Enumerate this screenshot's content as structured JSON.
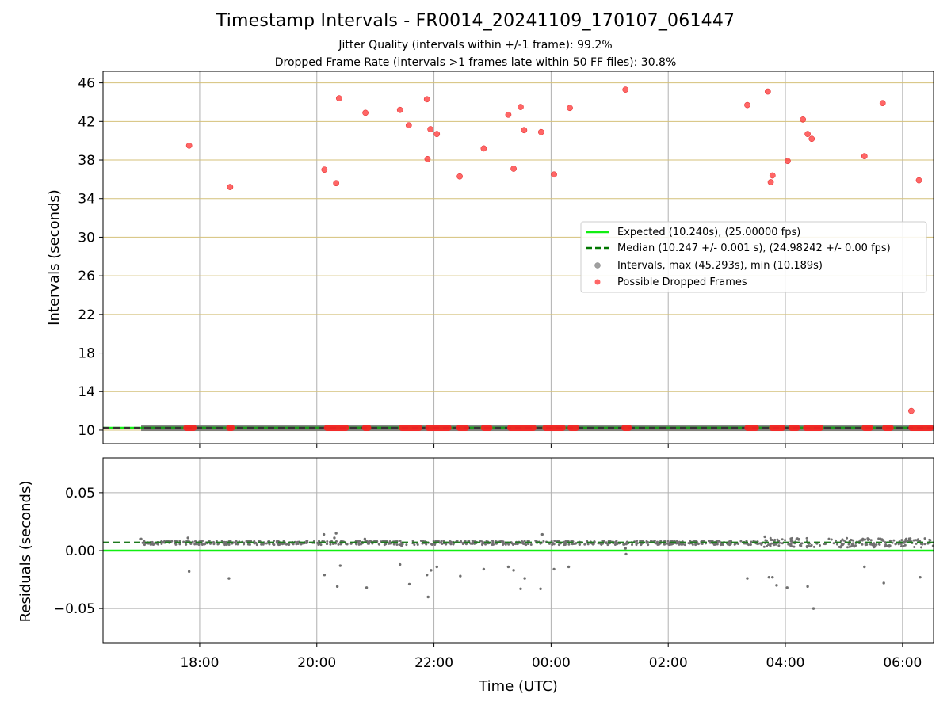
{
  "figure": {
    "title": "Timestamp Intervals - FR0014_20241109_170107_061447",
    "subtitle1": "Jitter Quality (intervals within +/-1 frame): 99.2%",
    "subtitle2": "Dropped Frame Rate (intervals >1 frames late within 50 FF files): 30.8%"
  },
  "chart_data": [
    {
      "type": "scatter",
      "panel": "top",
      "xlabel": "",
      "ylabel": "Intervals (seconds)",
      "xlim": [
        16.35,
        30.53
      ],
      "ylim": [
        8.6,
        47.2
      ],
      "x_ticks": [
        18,
        20,
        22,
        24,
        26,
        28,
        30
      ],
      "x_tick_labels": [
        "18:00",
        "20:00",
        "22:00",
        "00:00",
        "02:00",
        "04:00",
        "06:00"
      ],
      "y_ticks": [
        10,
        14,
        18,
        22,
        26,
        30,
        34,
        38,
        42,
        46
      ],
      "grid": true,
      "legend_position": "right",
      "legend": [
        {
          "label": "Expected (10.240s), (25.00000 fps)",
          "style": "solid-line",
          "color": "#11ee11"
        },
        {
          "label": "Median (10.247 +/- 0.001 s), (24.98242 +/- 0.00 fps)",
          "style": "dashed-line",
          "color": "#007700"
        },
        {
          "label": "Intervals, max (45.293s), min (10.189s)",
          "style": "marker",
          "color": "#a0a0a0"
        },
        {
          "label": "Possible Dropped Frames",
          "style": "marker",
          "color": "#ff3333"
        }
      ],
      "series": [
        {
          "name": "Expected (10.240s), (25.00000 fps)",
          "kind": "hline",
          "y": 10.24,
          "color": "#11ee11"
        },
        {
          "name": "Median (10.247 +/- 0.001 s), (24.98242 +/- 0.00 fps)",
          "kind": "hline",
          "y": 10.247,
          "color": "#007700"
        },
        {
          "name": "Intervals, max (45.293s), min (10.189s)",
          "kind": "band",
          "x_range": [
            17.0,
            30.53
          ],
          "y": 10.24,
          "color": "#707070"
        },
        {
          "name": "Possible Dropped Frames",
          "kind": "points",
          "color": "#ff3333",
          "points": [
            [
              17.82,
              39.5
            ],
            [
              18.52,
              35.2
            ],
            [
              20.13,
              37.0
            ],
            [
              20.33,
              35.6
            ],
            [
              20.38,
              44.4
            ],
            [
              20.83,
              42.9
            ],
            [
              21.42,
              43.2
            ],
            [
              21.57,
              41.6
            ],
            [
              21.88,
              44.3
            ],
            [
              21.89,
              38.1
            ],
            [
              21.94,
              41.2
            ],
            [
              22.05,
              40.7
            ],
            [
              22.44,
              36.3
            ],
            [
              22.85,
              39.2
            ],
            [
              23.27,
              42.7
            ],
            [
              23.36,
              37.1
            ],
            [
              23.48,
              43.5
            ],
            [
              23.54,
              41.1
            ],
            [
              23.83,
              40.9
            ],
            [
              24.05,
              36.5
            ],
            [
              24.32,
              43.4
            ],
            [
              25.27,
              45.3
            ],
            [
              27.35,
              43.7
            ],
            [
              27.7,
              45.1
            ],
            [
              27.75,
              35.7
            ],
            [
              27.78,
              36.4
            ],
            [
              28.04,
              37.9
            ],
            [
              28.3,
              42.2
            ],
            [
              28.38,
              40.7
            ],
            [
              28.45,
              40.2
            ],
            [
              29.35,
              38.4
            ],
            [
              29.66,
              43.9
            ],
            [
              30.15,
              12.0
            ],
            [
              30.28,
              35.9
            ]
          ],
          "baseline_clusters": [
            [
              17.72,
              17.95
            ],
            [
              18.45,
              18.6
            ],
            [
              20.12,
              20.55
            ],
            [
              20.77,
              20.93
            ],
            [
              21.4,
              21.8
            ],
            [
              21.85,
              22.3
            ],
            [
              22.38,
              22.6
            ],
            [
              22.8,
              23.0
            ],
            [
              23.25,
              23.75
            ],
            [
              23.85,
              24.25
            ],
            [
              24.28,
              24.48
            ],
            [
              25.2,
              25.38
            ],
            [
              27.3,
              27.55
            ],
            [
              27.72,
              28.0
            ],
            [
              28.05,
              28.25
            ],
            [
              28.3,
              28.65
            ],
            [
              29.3,
              29.5
            ],
            [
              29.65,
              29.85
            ],
            [
              30.1,
              30.53
            ]
          ]
        }
      ]
    },
    {
      "type": "scatter",
      "panel": "bottom",
      "xlabel": "Time (UTC)",
      "ylabel": "Residuals (seconds)",
      "xlim": [
        16.35,
        30.53
      ],
      "ylim": [
        -0.08,
        0.08
      ],
      "x_ticks": [
        18,
        20,
        22,
        24,
        26,
        28,
        30
      ],
      "x_tick_labels": [
        "18:00",
        "20:00",
        "22:00",
        "00:00",
        "02:00",
        "04:00",
        "06:00"
      ],
      "y_ticks": [
        0.05,
        0.0,
        -0.05
      ],
      "y_tick_labels": [
        "0.05",
        "0.00",
        "−0.05"
      ],
      "grid": true,
      "series": [
        {
          "name": "Expected",
          "kind": "hline",
          "y": 0.0,
          "color": "#11ee11"
        },
        {
          "name": "Median",
          "kind": "hline",
          "y": 0.007,
          "color": "#007700"
        },
        {
          "name": "Residuals",
          "kind": "points",
          "color": "#707070",
          "points": [
            [
              17.0,
              0.01
            ],
            [
              17.05,
              0.008
            ],
            [
              17.8,
              0.011
            ],
            [
              17.82,
              -0.018
            ],
            [
              18.5,
              -0.024
            ],
            [
              20.12,
              0.014
            ],
            [
              20.13,
              -0.021
            ],
            [
              20.3,
              0.011
            ],
            [
              20.33,
              0.015
            ],
            [
              20.35,
              -0.031
            ],
            [
              20.4,
              -0.013
            ],
            [
              20.82,
              0.01
            ],
            [
              20.85,
              -0.032
            ],
            [
              21.42,
              -0.012
            ],
            [
              21.45,
              0.004
            ],
            [
              21.58,
              -0.029
            ],
            [
              21.88,
              -0.021
            ],
            [
              21.9,
              -0.04
            ],
            [
              21.95,
              -0.017
            ],
            [
              22.05,
              -0.014
            ],
            [
              22.45,
              -0.022
            ],
            [
              22.85,
              -0.016
            ],
            [
              23.27,
              -0.014
            ],
            [
              23.36,
              -0.017
            ],
            [
              23.48,
              -0.033
            ],
            [
              23.55,
              -0.024
            ],
            [
              23.82,
              -0.033
            ],
            [
              23.85,
              0.014
            ],
            [
              24.05,
              -0.016
            ],
            [
              24.3,
              -0.014
            ],
            [
              25.27,
              0.002
            ],
            [
              25.28,
              -0.003
            ],
            [
              27.35,
              -0.024
            ],
            [
              27.65,
              0.012
            ],
            [
              27.72,
              -0.023
            ],
            [
              27.78,
              -0.023
            ],
            [
              27.85,
              -0.03
            ],
            [
              28.03,
              -0.032
            ],
            [
              28.38,
              -0.031
            ],
            [
              28.48,
              -0.05
            ],
            [
              29.35,
              -0.014
            ],
            [
              29.68,
              -0.028
            ],
            [
              30.3,
              -0.023
            ]
          ]
        }
      ]
    }
  ]
}
